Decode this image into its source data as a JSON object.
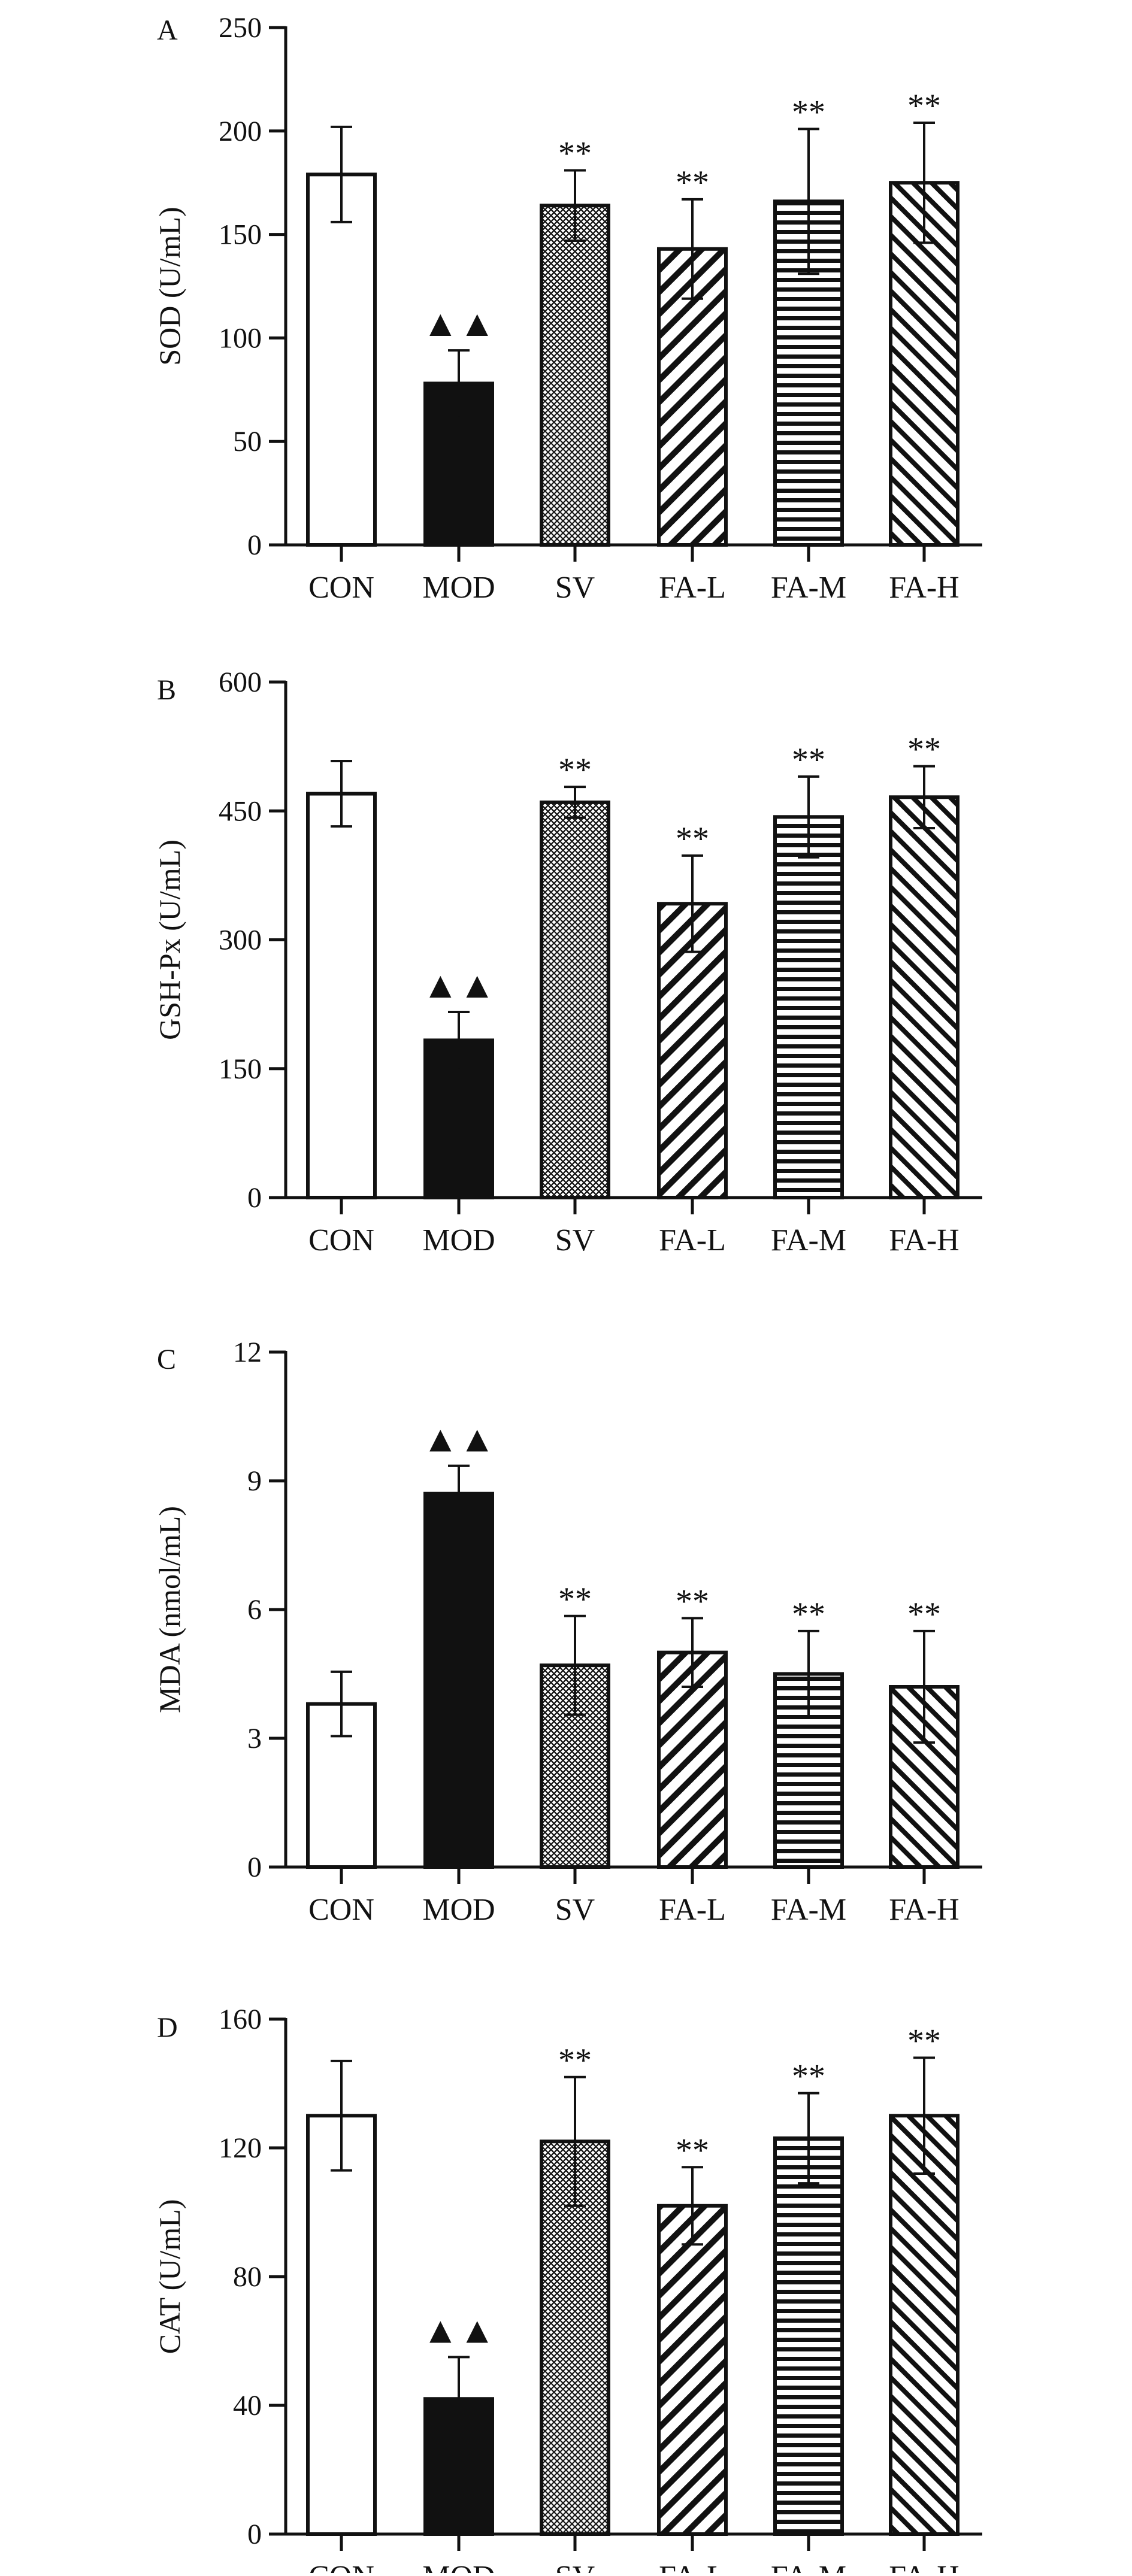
{
  "chart_data": [
    {
      "type": "bar",
      "panel_label": "A",
      "ylabel": "SOD (U/mL)",
      "ylim": [
        0,
        250
      ],
      "yticks": [
        0,
        50,
        100,
        150,
        200,
        250
      ],
      "categories": [
        "CON",
        "MOD",
        "SV",
        "FA-L",
        "FA-M",
        "FA-H"
      ],
      "values": [
        179,
        78,
        164,
        143,
        166,
        175
      ],
      "errors": [
        23,
        16,
        17,
        24,
        35,
        29
      ],
      "significance": [
        "",
        "▲▲",
        "**",
        "**",
        "**",
        "**"
      ],
      "grid": false
    },
    {
      "type": "bar",
      "panel_label": "B",
      "ylabel": "GSH-Px (U/mL)",
      "ylim": [
        0,
        600
      ],
      "yticks": [
        0,
        150,
        300,
        450,
        600
      ],
      "categories": [
        "CON",
        "MOD",
        "SV",
        "FA-L",
        "FA-M",
        "FA-H"
      ],
      "values": [
        470,
        183,
        460,
        342,
        443,
        466
      ],
      "errors": [
        38,
        33,
        18,
        56,
        47,
        36
      ],
      "significance": [
        "",
        "▲▲",
        "**",
        "**",
        "**",
        "**"
      ],
      "grid": false
    },
    {
      "type": "bar",
      "panel_label": "C",
      "ylabel": "MDA (nmol/mL)",
      "ylim": [
        0,
        12
      ],
      "yticks": [
        0,
        3,
        6,
        9,
        12
      ],
      "categories": [
        "CON",
        "MOD",
        "SV",
        "FA-L",
        "FA-M",
        "FA-H"
      ],
      "values": [
        3.8,
        8.7,
        4.7,
        5.0,
        4.5,
        4.2
      ],
      "errors": [
        0.75,
        0.65,
        1.15,
        0.8,
        1.0,
        1.3
      ],
      "significance": [
        "",
        "▲▲",
        "**",
        "**",
        "**",
        "**"
      ],
      "grid": false
    },
    {
      "type": "bar",
      "panel_label": "D",
      "ylabel": "CAT (U/mL)",
      "ylim": [
        0,
        160
      ],
      "yticks": [
        0,
        40,
        80,
        120,
        160
      ],
      "categories": [
        "CON",
        "MOD",
        "SV",
        "FA-L",
        "FA-M",
        "FA-H"
      ],
      "values": [
        130,
        42,
        122,
        102,
        123,
        130
      ],
      "errors": [
        17,
        13,
        20,
        12,
        14,
        18
      ],
      "significance": [
        "",
        "▲▲",
        "**",
        "**",
        "**",
        "**"
      ],
      "grid": false
    }
  ],
  "fills": [
    "#ffffff",
    "#111111",
    "pattern-crosshatch",
    "pattern-diagonal-back",
    "pattern-horizontal",
    "pattern-diagonal-forward"
  ],
  "colors": {
    "ink": "#111111",
    "background": "#ffffff"
  }
}
